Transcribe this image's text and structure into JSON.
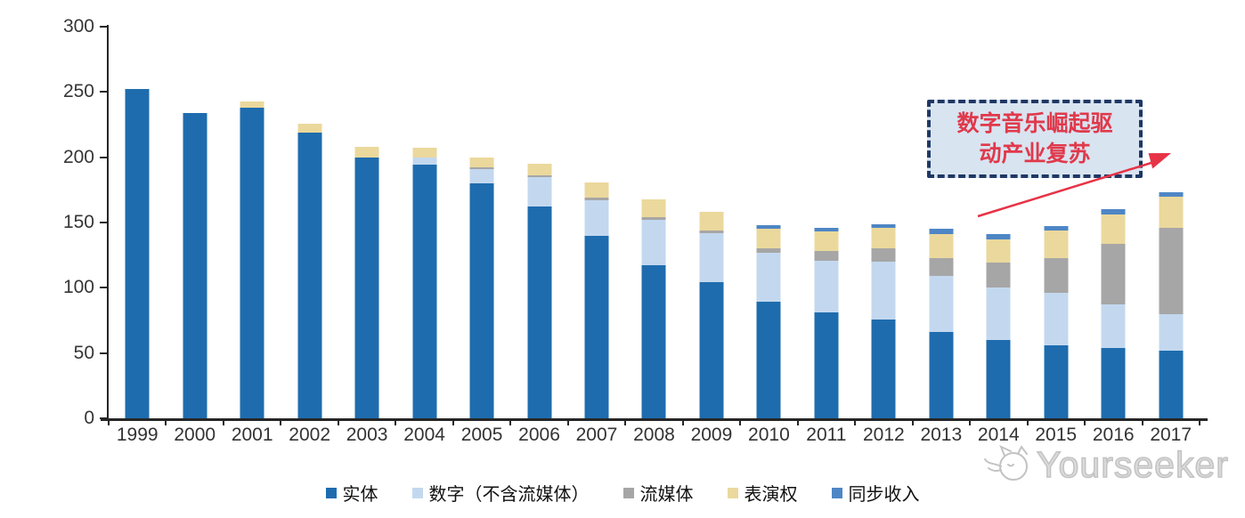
{
  "chart_data": {
    "type": "bar",
    "stacked": true,
    "title": "",
    "xlabel": "",
    "ylabel": "",
    "unit_note": "values as shown on axis (0-300)",
    "ylim": [
      0,
      300
    ],
    "yticks": [
      "0",
      "50",
      "100",
      "150",
      "200",
      "250",
      "300"
    ],
    "grid": false,
    "legend_position": "bottom",
    "categories": [
      "1999",
      "2000",
      "2001",
      "2002",
      "2003",
      "2004",
      "2005",
      "2006",
      "2007",
      "2008",
      "2009",
      "2010",
      "2011",
      "2012",
      "2013",
      "2014",
      "2015",
      "2016",
      "2017"
    ],
    "series": [
      {
        "id": "physical",
        "name": "实体",
        "color": "#1E6CAE",
        "values": [
          252,
          234,
          238,
          219,
          200,
          194,
          180,
          162,
          140,
          117,
          104,
          89,
          81,
          76,
          66,
          60,
          56,
          54,
          52
        ]
      },
      {
        "id": "digital",
        "name": "数字（不含流媒体）",
        "color": "#C3D8EF",
        "values": [
          0,
          0,
          0,
          0,
          0,
          6,
          11,
          23,
          27,
          35,
          38,
          38,
          40,
          44,
          43,
          40,
          40,
          33,
          28
        ]
      },
      {
        "id": "streaming",
        "name": "流媒体",
        "color": "#A6A6A6",
        "values": [
          0,
          0,
          0,
          0,
          0,
          0,
          1,
          1,
          2,
          2,
          2,
          3,
          7,
          10,
          14,
          19,
          27,
          47,
          66
        ]
      },
      {
        "id": "performance",
        "name": "表演权",
        "color": "#EBD89C",
        "values": [
          0,
          0,
          5,
          7,
          8,
          7,
          8,
          9,
          12,
          14,
          14,
          15,
          15,
          16,
          18,
          18,
          21,
          22,
          24
        ]
      },
      {
        "id": "sync",
        "name": "同步收入",
        "color": "#4E86C5",
        "values": [
          0,
          0,
          0,
          0,
          0,
          0,
          0,
          0,
          0,
          0,
          0,
          3,
          3,
          3,
          4,
          4,
          3,
          4,
          3
        ]
      }
    ]
  },
  "annotation": {
    "lines": [
      "数字音乐崛起驱",
      "动产业复苏"
    ],
    "text_color": "#E0394B",
    "border_color": "#1F3864",
    "fill_color": "#D9E4F1",
    "arrow_color": "#E73347"
  },
  "watermark": {
    "text": "Yourseeker",
    "color": "#C3C3C3",
    "logo": "cat-outline-logo"
  }
}
